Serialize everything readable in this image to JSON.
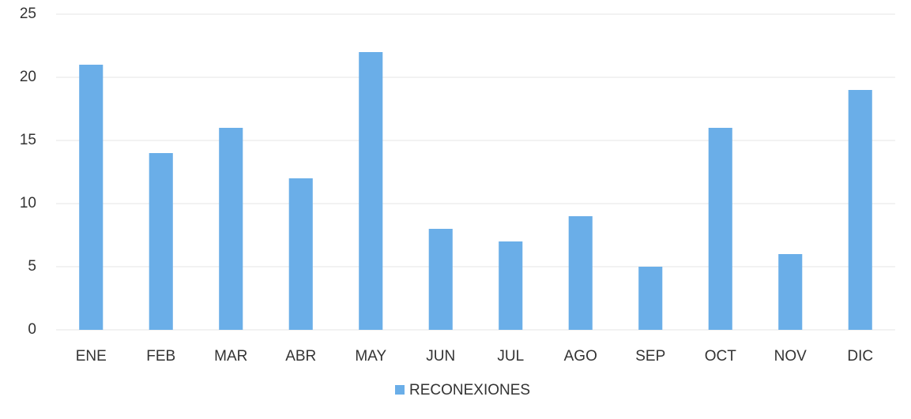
{
  "chart_data": {
    "type": "bar",
    "categories": [
      "ENE",
      "FEB",
      "MAR",
      "ABR",
      "MAY",
      "JUN",
      "JUL",
      "AGO",
      "SEP",
      "OCT",
      "NOV",
      "DIC"
    ],
    "series": [
      {
        "name": "RECONEXIONES",
        "color": "#6aaee8",
        "values": [
          21,
          14,
          16,
          12,
          22,
          8,
          7,
          9,
          5,
          16,
          6,
          19
        ]
      }
    ],
    "ylim": [
      0,
      25
    ],
    "yticks": [
      0,
      5,
      10,
      15,
      20,
      25
    ],
    "grid": true,
    "legend": "bottom"
  }
}
